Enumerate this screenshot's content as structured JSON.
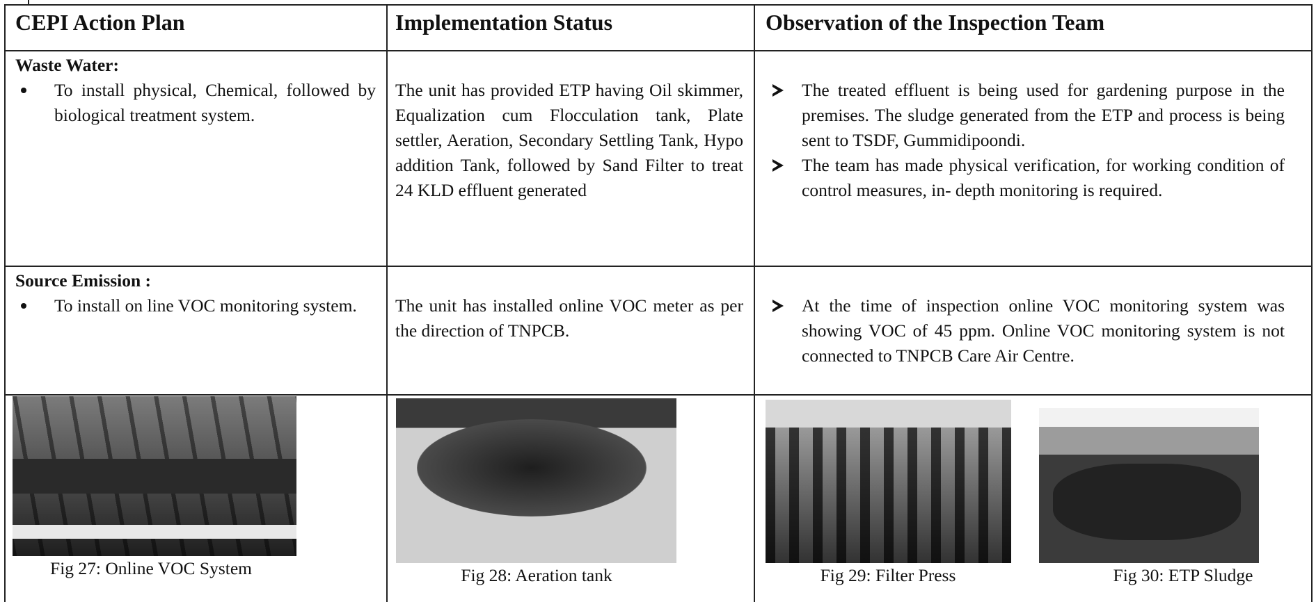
{
  "table": {
    "headers": [
      "CEPI Action Plan",
      "Implementation Status",
      "Observation of the Inspection Team"
    ],
    "rows": [
      {
        "heading": "Waste Water:",
        "action": [
          "To install physical, Chemical, followed by biological treatment system."
        ],
        "status": "The unit has provided ETP having Oil skimmer, Equalization cum Flocculation tank, Plate settler, Aeration, Secondary Settling Tank, Hypo addition Tank, followed by Sand Filter to treat 24 KLD effluent generated",
        "observations": [
          "The treated effluent is being used for gardening purpose in the premises. The sludge generated from the ETP and process is being sent to TSDF, Gummidipoondi.",
          "The team has made physical verification, for working condition of control measures, in- depth monitoring is required."
        ]
      },
      {
        "heading": "Source Emission :",
        "action": [
          "To install on line VOC monitoring system."
        ],
        "status": "The unit has installed online VOC meter as per the direction of TNPCB.",
        "observations": [
          "At the time of inspection online VOC monitoring system was showing VOC of 45 ppm. Online VOC monitoring system is not connected to TNPCB Care Air Centre."
        ]
      }
    ]
  },
  "figures": [
    {
      "caption": "Fig 27: Online VOC System"
    },
    {
      "caption": "Fig 28: Aeration tank"
    },
    {
      "caption": "Fig 29: Filter Press"
    },
    {
      "caption": "Fig 30: ETP Sludge"
    }
  ]
}
